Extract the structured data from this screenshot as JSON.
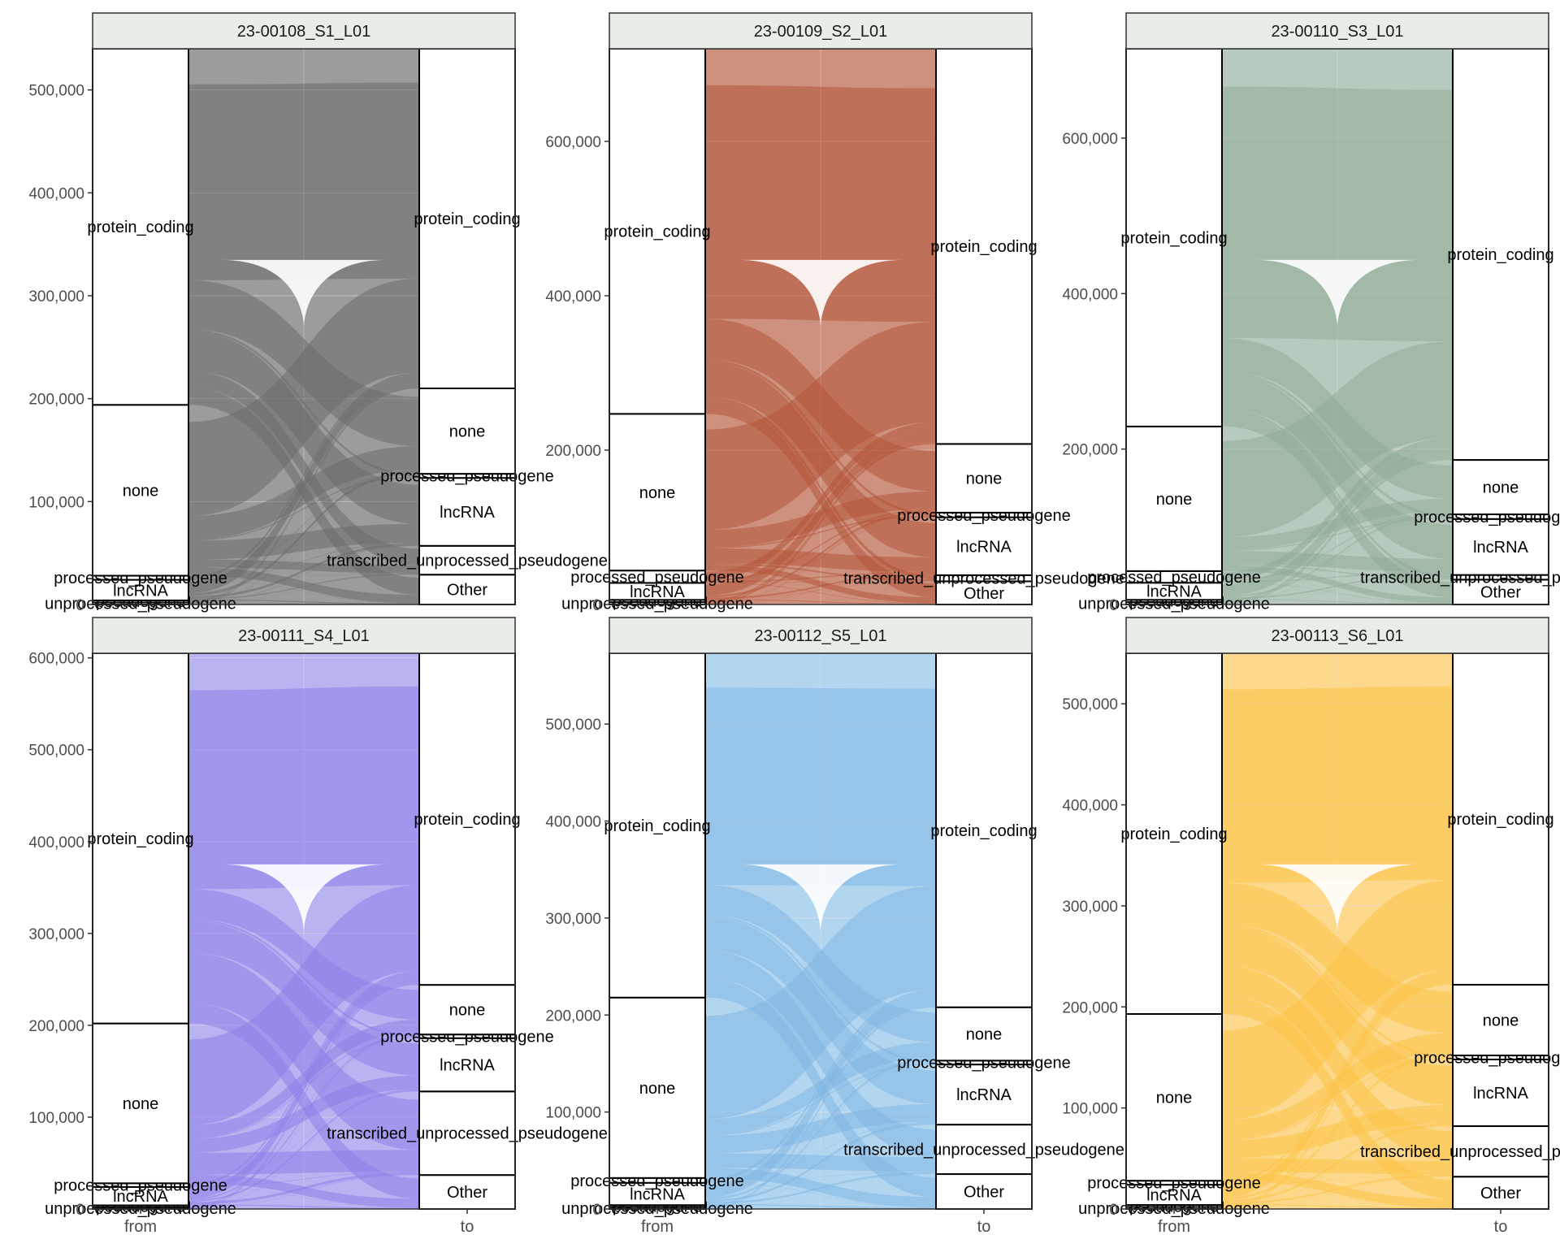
{
  "chart_data": {
    "type": "alluvial",
    "x_axis_labels": [
      "from",
      "to"
    ],
    "panels": [
      {
        "title": "23-00108_S1_L01",
        "color": "#9c9c9c",
        "flow_color": "#6b6b6b",
        "ylim": [
          0,
          540000
        ],
        "yticks": [
          0,
          100000,
          200000,
          300000,
          400000,
          500000
        ],
        "ytick_labels": [
          "0",
          "100,000",
          "200,000",
          "300,000",
          "400,000",
          "500,000"
        ],
        "from": [
          {
            "label": "unprocessed_pseudogene",
            "value": 2000
          },
          {
            "label": "pseudogene",
            "value": 2000
          },
          {
            "label": "lncRNA",
            "value": 20000
          },
          {
            "label": "processed_pseudogene",
            "value": 4000
          },
          {
            "label": "none",
            "value": 166000
          },
          {
            "label": "protein_coding",
            "value": 346000
          }
        ],
        "to": [
          {
            "label": "Other",
            "value": 29000
          },
          {
            "label": "transcribed_unprocessed_pseudogene",
            "value": 28000
          },
          {
            "label": "lncRNA",
            "value": 66000
          },
          {
            "label": "processed_pseudogene",
            "value": 4000
          },
          {
            "label": "none",
            "value": 83000
          },
          {
            "label": "protein_coding",
            "value": 330000
          }
        ]
      },
      {
        "title": "23-00109_S2_L01",
        "color": "#cd917d",
        "flow_color": "#b5553a",
        "ylim": [
          0,
          720000
        ],
        "yticks": [
          0,
          200000,
          400000,
          600000
        ],
        "ytick_labels": [
          "0",
          "200,000",
          "400,000",
          "600,000"
        ],
        "from": [
          {
            "label": "unprocessed_pseudogene",
            "value": 3000
          },
          {
            "label": "pseudogene",
            "value": 3000
          },
          {
            "label": "lncRNA",
            "value": 22000
          },
          {
            "label": "processed_pseudogene",
            "value": 16000
          },
          {
            "label": "none",
            "value": 203000
          },
          {
            "label": "protein_coding",
            "value": 473000
          }
        ],
        "to": [
          {
            "label": "Other",
            "value": 30000
          },
          {
            "label": "transcribed_unprocessed_pseudogene",
            "value": 8000
          },
          {
            "label": "lncRNA",
            "value": 75000
          },
          {
            "label": "processed_pseudogene",
            "value": 6000
          },
          {
            "label": "none",
            "value": 89000
          },
          {
            "label": "protein_coding",
            "value": 512000
          }
        ]
      },
      {
        "title": "23-00110_S3_L01",
        "color": "#b8cabd",
        "flow_color": "#8fac97",
        "ylim": [
          0,
          715000
        ],
        "yticks": [
          0,
          200000,
          400000,
          600000
        ],
        "ytick_labels": [
          "0",
          "200,000",
          "400,000",
          "600,000"
        ],
        "from": [
          {
            "label": "unprocessed_pseudogene",
            "value": 3000
          },
          {
            "label": "pseudogene",
            "value": 3000
          },
          {
            "label": "lncRNA",
            "value": 22000
          },
          {
            "label": "processed_pseudogene",
            "value": 15000
          },
          {
            "label": "none",
            "value": 186000
          },
          {
            "label": "protein_coding",
            "value": 486000
          }
        ],
        "to": [
          {
            "label": "Other",
            "value": 32000
          },
          {
            "label": "transcribed_unprocessed_pseudogene",
            "value": 6000
          },
          {
            "label": "lncRNA",
            "value": 72000
          },
          {
            "label": "processed_pseudogene",
            "value": 6000
          },
          {
            "label": "none",
            "value": 70000
          },
          {
            "label": "protein_coding",
            "value": 529000
          }
        ]
      },
      {
        "title": "23-00111_S4_L01",
        "color": "#b8b3f1",
        "flow_color": "#8a80e8",
        "ylim": [
          0,
          605000
        ],
        "yticks": [
          0,
          100000,
          200000,
          300000,
          400000,
          500000,
          600000
        ],
        "ytick_labels": [
          "0",
          "100,000",
          "200,000",
          "300,000",
          "400,000",
          "500,000",
          "600,000"
        ],
        "from": [
          {
            "label": "unprocessed_pseudogene",
            "value": 2000
          },
          {
            "label": "pseudogene",
            "value": 2000
          },
          {
            "label": "lncRNA",
            "value": 20000
          },
          {
            "label": "processed_pseudogene",
            "value": 4000
          },
          {
            "label": "none",
            "value": 174000
          },
          {
            "label": "protein_coding",
            "value": 403000
          }
        ],
        "to": [
          {
            "label": "Other",
            "value": 37000
          },
          {
            "label": "transcribed_unprocessed_pseudogene",
            "value": 91000
          },
          {
            "label": "lncRNA",
            "value": 58000
          },
          {
            "label": "processed_pseudogene",
            "value": 4000
          },
          {
            "label": "none",
            "value": 54000
          },
          {
            "label": "protein_coding",
            "value": 361000
          }
        ]
      },
      {
        "title": "23-00112_S5_L01",
        "color": "#b3d6f0",
        "flow_color": "#7fb7e4",
        "ylim": [
          0,
          573000
        ],
        "yticks": [
          0,
          100000,
          200000,
          300000,
          400000,
          500000
        ],
        "ytick_labels": [
          "0",
          "100,000",
          "200,000",
          "300,000",
          "400,000",
          "500,000"
        ],
        "from": [
          {
            "label": "unprocessed_pseudogene",
            "value": 2000
          },
          {
            "label": "pseudogene",
            "value": 2000
          },
          {
            "label": "lncRNA",
            "value": 23000
          },
          {
            "label": "processed_pseudogene",
            "value": 5000
          },
          {
            "label": "none",
            "value": 186000
          },
          {
            "label": "protein_coding",
            "value": 355000
          }
        ],
        "to": [
          {
            "label": "Other",
            "value": 36000
          },
          {
            "label": "transcribed_unprocessed_pseudogene",
            "value": 51000
          },
          {
            "label": "lncRNA",
            "value": 62000
          },
          {
            "label": "processed_pseudogene",
            "value": 4000
          },
          {
            "label": "none",
            "value": 55000
          },
          {
            "label": "protein_coding",
            "value": 365000
          }
        ]
      },
      {
        "title": "23-00113_S6_L01",
        "color": "#fdd98d",
        "flow_color": "#fcc346",
        "ylim": [
          0,
          550000
        ],
        "yticks": [
          0,
          100000,
          200000,
          300000,
          400000,
          500000
        ],
        "ytick_labels": [
          "0",
          "100,000",
          "200,000",
          "300,000",
          "400,000",
          "500,000"
        ],
        "from": [
          {
            "label": "unprocessed_pseudogene",
            "value": 2000
          },
          {
            "label": "pseudogene",
            "value": 2000
          },
          {
            "label": "lncRNA",
            "value": 20000
          },
          {
            "label": "processed_pseudogene",
            "value": 4000
          },
          {
            "label": "none",
            "value": 165000
          },
          {
            "label": "protein_coding",
            "value": 357000
          }
        ],
        "to": [
          {
            "label": "Other",
            "value": 32000
          },
          {
            "label": "transcribed_unprocessed_pseudogene",
            "value": 50000
          },
          {
            "label": "lncRNA",
            "value": 66000
          },
          {
            "label": "processed_pseudogene",
            "value": 4000
          },
          {
            "label": "none",
            "value": 70000
          },
          {
            "label": "protein_coding",
            "value": 328000
          }
        ]
      }
    ]
  }
}
